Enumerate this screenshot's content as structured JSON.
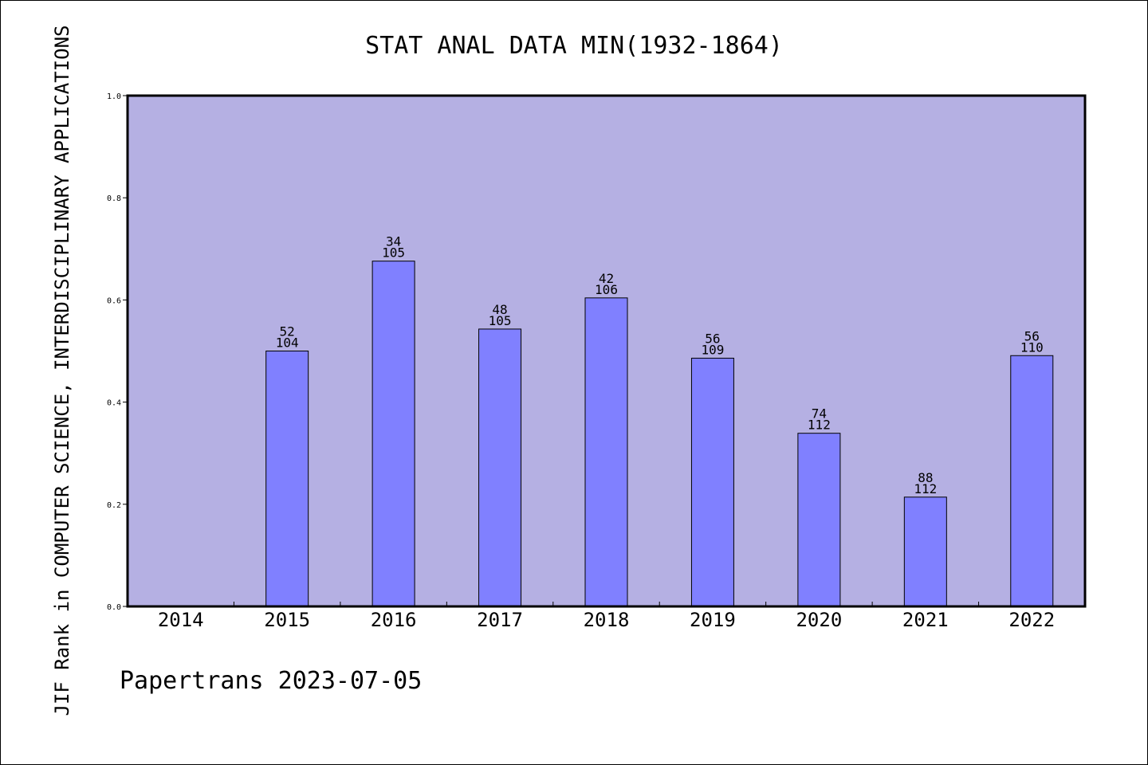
{
  "chart_data": {
    "type": "bar",
    "title": "STAT ANAL DATA MIN(1932-1864)",
    "xlabel": "",
    "ylabel": "JIF Rank in COMPUTER SCIENCE, INTERDISCIPLINARY APPLICATIONS",
    "ylim": [
      0,
      1
    ],
    "yticks": [
      "0.0",
      "0.2",
      "0.4",
      "0.6",
      "0.8",
      "1.0"
    ],
    "categories": [
      "2014",
      "2015",
      "2016",
      "2017",
      "2018",
      "2019",
      "2020",
      "2021",
      "2022"
    ],
    "values": [
      null,
      0.5,
      0.676,
      0.543,
      0.604,
      0.486,
      0.339,
      0.214,
      0.491
    ],
    "rank": [
      "",
      "52",
      "34",
      "48",
      "42",
      "56",
      "74",
      "88",
      "56"
    ],
    "total": [
      "",
      "104",
      "105",
      "105",
      "106",
      "109",
      "112",
      "112",
      "110"
    ],
    "grid": false,
    "colors": {
      "plot_bg": "#b5b0e3",
      "bar": "#8080ff",
      "bar_stroke": "#000000"
    }
  },
  "footer": "Papertrans 2023-07-05"
}
